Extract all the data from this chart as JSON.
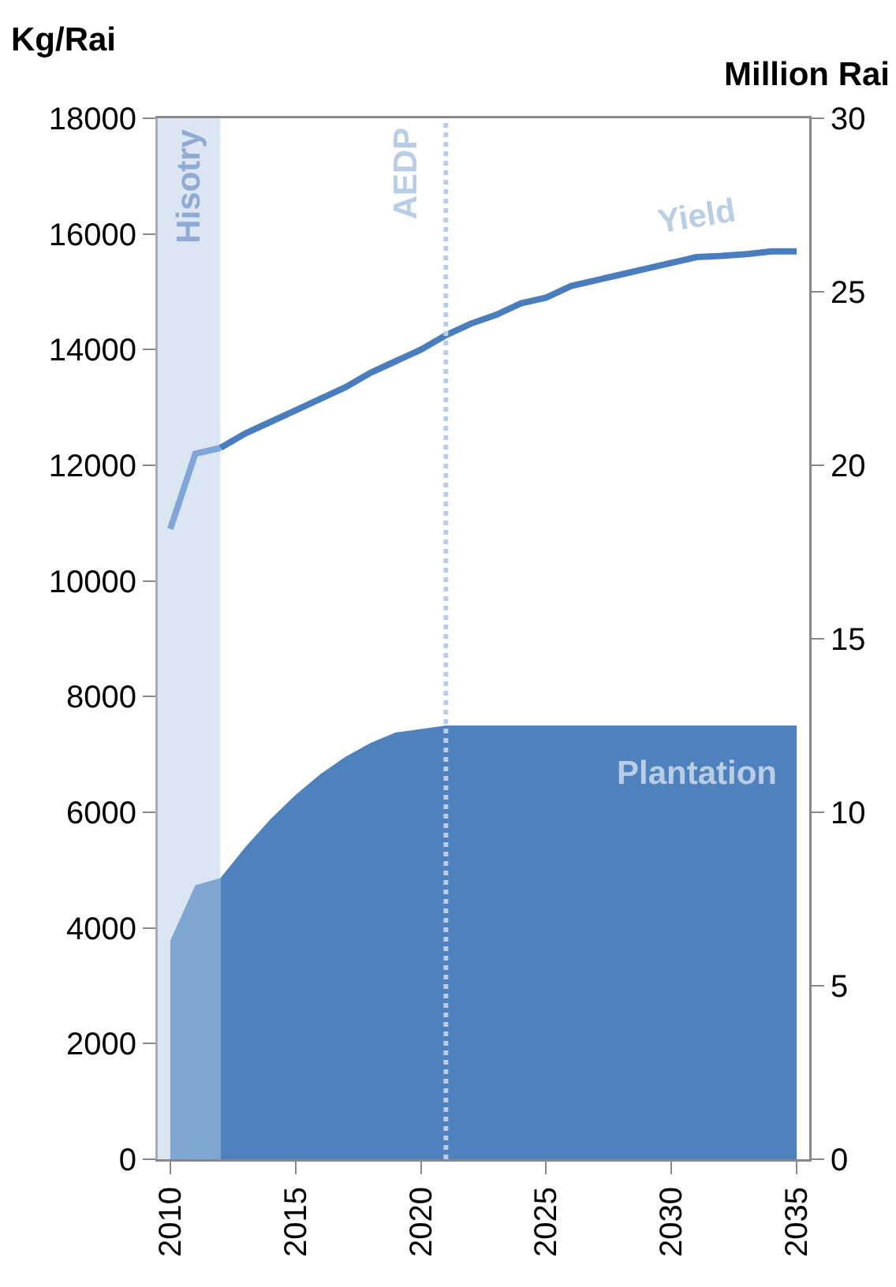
{
  "chart_data": {
    "type": "line",
    "ylabel": "Kg/Rai",
    "y2label": "Million Rai",
    "xlim": [
      2009.5,
      2035.5
    ],
    "xticks": [
      2010,
      2015,
      2020,
      2025,
      2030,
      2035
    ],
    "ylim": [
      0,
      18000
    ],
    "yticks": [
      0,
      2000,
      4000,
      6000,
      8000,
      10000,
      12000,
      14000,
      16000,
      18000
    ],
    "y2lim": [
      0,
      30
    ],
    "y2ticks": [
      0,
      5,
      10,
      15,
      20,
      25,
      30
    ],
    "grid": false,
    "legend": false,
    "marker": "none",
    "line_style": "solid",
    "series": [
      {
        "type": "area",
        "axis": "y2",
        "color": "#7fa5d1",
        "x": [
          2010,
          2011,
          2012
        ],
        "values": [
          6.3,
          7.9,
          8.1
        ]
      },
      {
        "type": "area",
        "axis": "y2",
        "name": "Plantation",
        "color": "#4f81bd",
        "x": [
          2012,
          2013,
          2014,
          2015,
          2016,
          2017,
          2018,
          2019,
          2020,
          2021,
          2022,
          2023,
          2024,
          2025,
          2026,
          2027,
          2028,
          2029,
          2030,
          2031,
          2032,
          2033,
          2034,
          2035
        ],
        "values": [
          8.1,
          9.0,
          9.8,
          10.5,
          11.1,
          11.6,
          12.0,
          12.3,
          12.4,
          12.5,
          12.5,
          12.5,
          12.5,
          12.5,
          12.5,
          12.5,
          12.5,
          12.5,
          12.5,
          12.5,
          12.5,
          12.5,
          12.5,
          12.5
        ]
      },
      {
        "color": "#7fa6d4",
        "x": [
          2010,
          2011,
          2012
        ],
        "values": [
          10900,
          12200,
          12300
        ]
      },
      {
        "name": "Yield",
        "color": "#4a7dbe",
        "x": [
          2012,
          2013,
          2014,
          2015,
          2016,
          2017,
          2018,
          2019,
          2020,
          2021,
          2022,
          2023,
          2024,
          2025,
          2026,
          2027,
          2028,
          2029,
          2030,
          2031,
          2032,
          2033,
          2034,
          2035
        ],
        "values": [
          12300,
          12550,
          12750,
          12950,
          13150,
          13350,
          13600,
          13800,
          14000,
          14250,
          14450,
          14600,
          14800,
          14900,
          15100,
          15200,
          15300,
          15400,
          15500,
          15600,
          15620,
          15650,
          15700,
          15700
        ]
      }
    ],
    "bands": [
      {
        "axis": "x",
        "from": 2009.5,
        "to": 2012,
        "label": "Hisotry",
        "color": "#dce6f2"
      }
    ],
    "ref_lines": [
      {
        "axis": "x",
        "value": 2021,
        "label": "AEDP",
        "color": "#b9cde5",
        "line_style": "dotted"
      }
    ]
  }
}
